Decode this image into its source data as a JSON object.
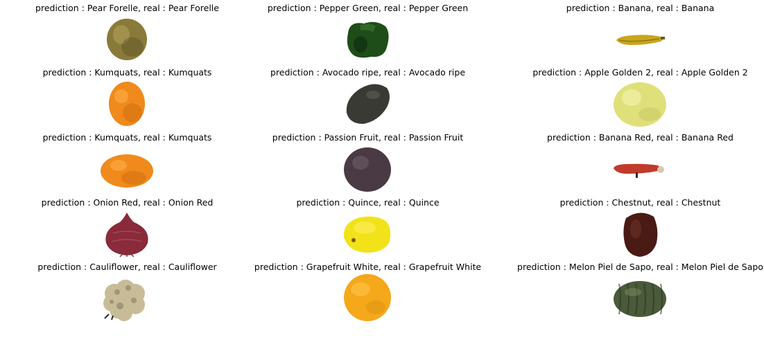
{
  "figure": {
    "panels": [
      {
        "caption": "prediction : Pear Forelle, real : Pear Forelle",
        "fruit": "pear-forelle",
        "colors": {
          "main": "#8a7a3a",
          "dark": "#4e4420",
          "light": "#b8a860"
        }
      },
      {
        "caption": "prediction : Pepper Green, real : Pepper Green",
        "fruit": "pepper-green",
        "colors": {
          "main": "#1f4d1a",
          "dark": "#0c2a0a",
          "light": "#3f7a33"
        }
      },
      {
        "caption": "prediction : Banana, real : Banana",
        "fruit": "banana",
        "colors": {
          "main": "#c9a51c",
          "dark": "#6e5a12",
          "light": "#e6cc55"
        }
      },
      {
        "caption": "prediction : Kumquats, real : Kumquats",
        "fruit": "kumquats",
        "colors": {
          "main": "#f08a1c",
          "dark": "#b85a08",
          "light": "#ffb24a"
        }
      },
      {
        "caption": "prediction : Avocado ripe, real : Avocado ripe",
        "fruit": "avocado-ripe",
        "colors": {
          "main": "#3a3a35",
          "dark": "#1f1f1c",
          "light": "#6a6a60"
        }
      },
      {
        "caption": "prediction : Apple Golden 2, real : Apple Golden 2",
        "fruit": "apple-golden-2",
        "colors": {
          "main": "#e0e07a",
          "dark": "#a6a64a",
          "light": "#f4f4b0"
        }
      },
      {
        "caption": "prediction : Kumquats, real : Kumquats",
        "fruit": "kumquats",
        "colors": {
          "main": "#f08a1c",
          "dark": "#b85a08",
          "light": "#ffb24a"
        }
      },
      {
        "caption": "prediction : Passion Fruit, real : Passion Fruit",
        "fruit": "passion-fruit",
        "colors": {
          "main": "#4a3a44",
          "dark": "#2a1f26",
          "light": "#7a6a74"
        }
      },
      {
        "caption": "prediction : Banana Red, real : Banana Red",
        "fruit": "banana-red",
        "colors": {
          "main": "#c23a2a",
          "dark": "#7a1f15",
          "light": "#e05a45"
        }
      },
      {
        "caption": "prediction : Onion Red, real : Onion Red",
        "fruit": "onion-red",
        "colors": {
          "main": "#8a2a3a",
          "dark": "#5a1a24",
          "light": "#b86a6a"
        }
      },
      {
        "caption": "prediction : Quince, real : Quince",
        "fruit": "quince",
        "colors": {
          "main": "#f2e21a",
          "dark": "#b8a10a",
          "light": "#fff06a"
        }
      },
      {
        "caption": "prediction : Chestnut, real : Chestnut",
        "fruit": "chestnut",
        "colors": {
          "main": "#4a1a14",
          "dark": "#2a0c08",
          "light": "#7a3a2a"
        }
      },
      {
        "caption": "prediction : Cauliflower, real : Cauliflower",
        "fruit": "cauliflower",
        "colors": {
          "main": "#c8bc98",
          "dark": "#7a7050",
          "light": "#e8dcc0"
        }
      },
      {
        "caption": "prediction : Grapefruit White, real : Grapefruit White",
        "fruit": "grapefruit-white",
        "colors": {
          "main": "#f4a81a",
          "dark": "#c47a08",
          "light": "#ffc850"
        }
      },
      {
        "caption": "prediction : Melon Piel de Sapo, real : Melon Piel de Sapo",
        "fruit": "melon-piel-de-sapo",
        "colors": {
          "main": "#4a5a3a",
          "dark": "#2a3420",
          "light": "#8a9a6a"
        }
      }
    ]
  }
}
